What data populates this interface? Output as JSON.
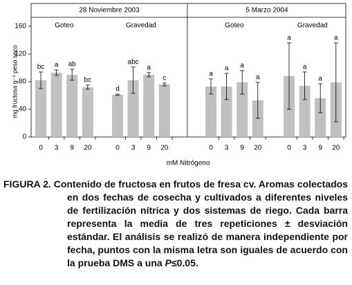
{
  "chart_data": {
    "type": "bar",
    "ylabel": "mg fructosa g⁻¹ peso seco",
    "xlabel": "mM Nitrógeno",
    "color": "#c0c0c0",
    "ylim": [
      0,
      160
    ],
    "yticks": [
      0,
      40,
      80,
      120,
      160
    ],
    "periods": [
      {
        "label": "28 Noviembre 2003",
        "groups": [
          {
            "name": "Goteo",
            "categories": [
              "0",
              "3",
              "9",
              "20"
            ],
            "values": [
              82,
              93,
              90,
              72
            ],
            "errors": [
              12,
              4,
              8,
              3
            ],
            "letters": [
              "bc",
              "a",
              "ab",
              "bc"
            ]
          },
          {
            "name": "Gravedad",
            "categories": [
              "0",
              "3",
              "9",
              "20"
            ],
            "values": [
              61,
              82,
              90,
              76
            ],
            "errors": [
              1,
              19,
              3,
              2
            ],
            "letters": [
              "d",
              "abc",
              "a",
              "c"
            ]
          }
        ]
      },
      {
        "label": "5 Marzo 2004",
        "groups": [
          {
            "name": "Goteo",
            "categories": [
              "0",
              "3",
              "9",
              "20"
            ],
            "values": [
              73,
              73,
              79,
              53
            ],
            "errors": [
              11,
              19,
              17,
              26
            ],
            "letters": [
              "a",
              "a",
              "a",
              "a"
            ]
          },
          {
            "name": "Gravedad",
            "categories": [
              "0",
              "3",
              "9",
              "20"
            ],
            "values": [
              88,
              74,
              56,
              79
            ],
            "errors": [
              48,
              20,
              21,
              57
            ],
            "letters": [
              "a",
              "a",
              "a",
              "a"
            ]
          }
        ]
      }
    ]
  },
  "caption": {
    "label": "FIGURA 2.",
    "text": "Contenido de fructosa en frutos de fresa cv. Aromas colectados en dos fechas de cosecha y cultivados a diferentes niveles de fertilización nítrica y dos sistemas de riego. Cada barra representa la media de tres repeticiones ± desviación estándar. El análisis se realizó de manera independiente por fecha, puntos con la misma letra son iguales de acuerdo con la prueba DMS a una",
    "p": "P",
    "rest": "≤0.05."
  }
}
